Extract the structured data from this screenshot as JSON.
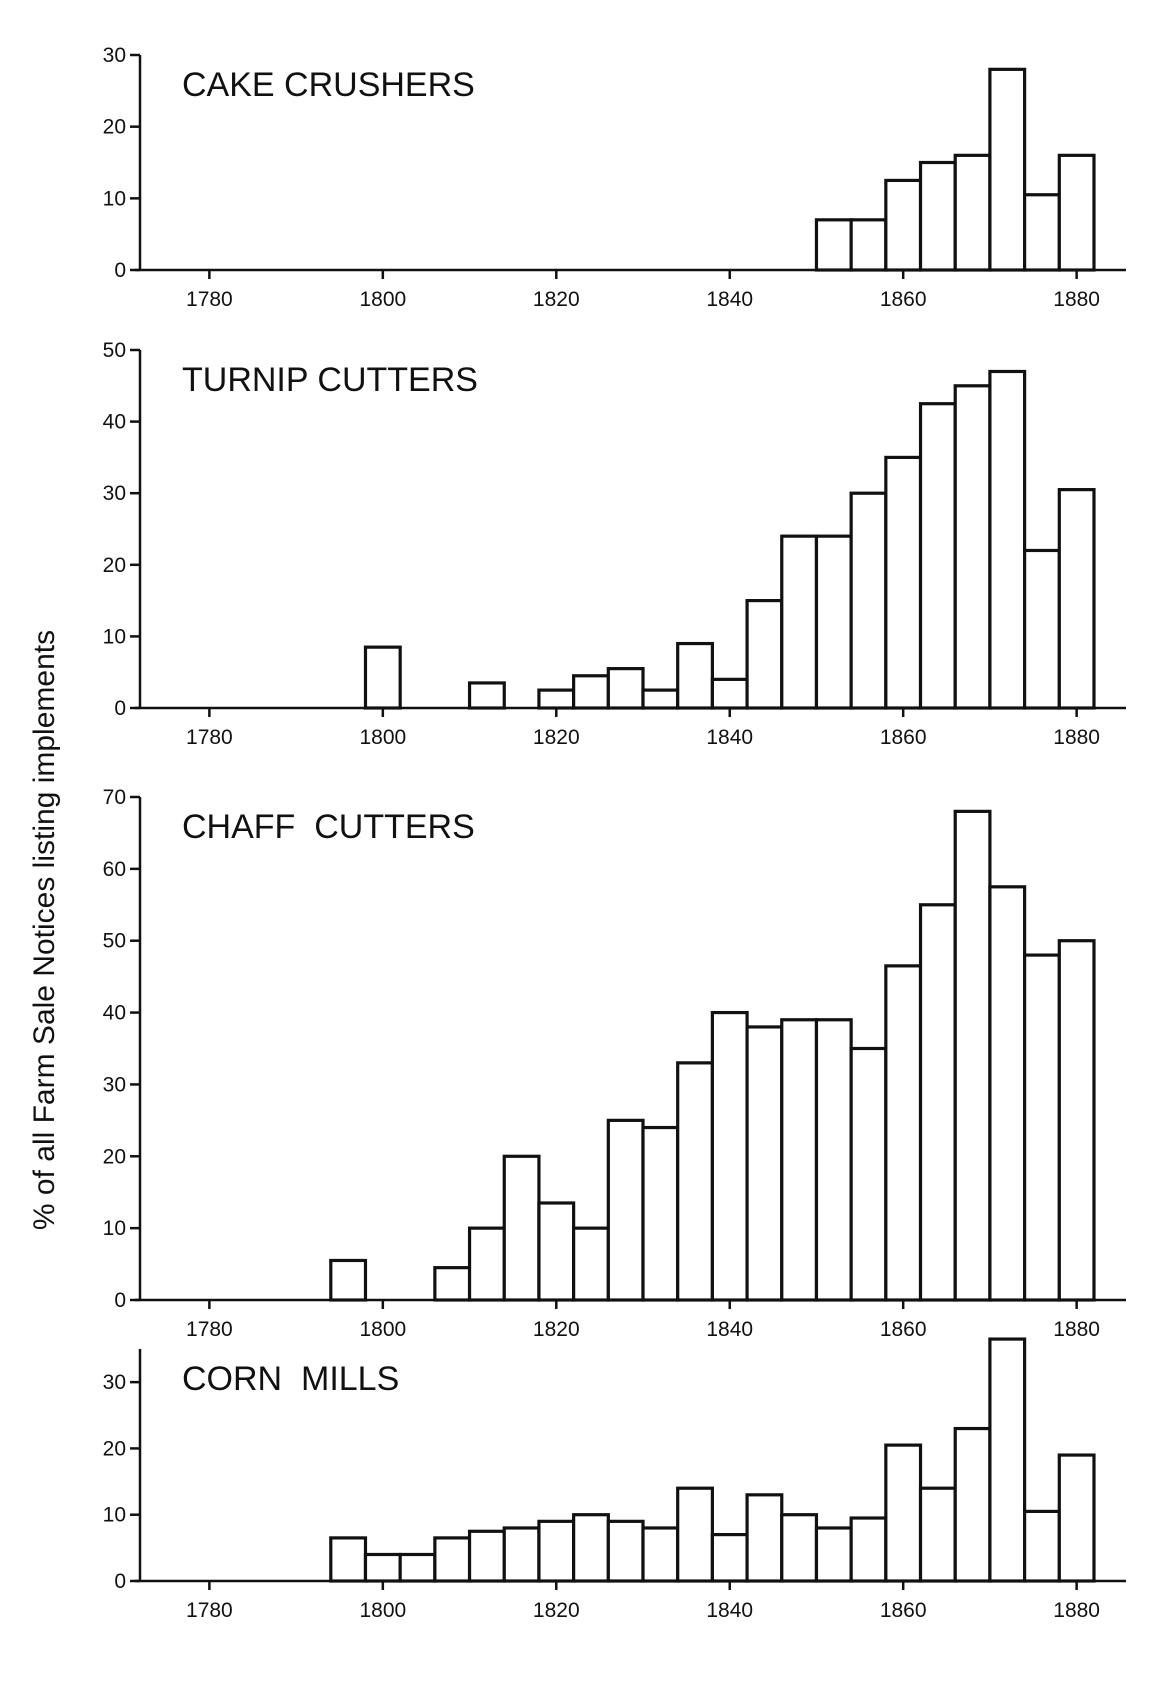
{
  "ylabel": "% of all Farm Sale Notices listing implements",
  "chart_data": [
    {
      "type": "bar",
      "title": "CAKE CRUSHERS",
      "xlim": [
        1772,
        1885
      ],
      "ylim": [
        0,
        30
      ],
      "yticks": [
        0,
        10,
        20,
        30
      ],
      "xticks": [
        1780,
        1800,
        1820,
        1840,
        1860,
        1880
      ],
      "bin_width": 4,
      "x": [
        1852,
        1856,
        1860,
        1864,
        1868,
        1872,
        1876,
        1880
      ],
      "values": [
        7,
        7,
        12.5,
        15,
        16,
        28,
        10.5,
        16
      ]
    },
    {
      "type": "bar",
      "title": "TURNIP CUTTERS",
      "xlim": [
        1772,
        1885
      ],
      "ylim": [
        0,
        50
      ],
      "yticks": [
        0,
        10,
        20,
        30,
        40,
        50
      ],
      "xticks": [
        1780,
        1800,
        1820,
        1840,
        1860,
        1880
      ],
      "bin_width": 4,
      "x": [
        1800,
        1812,
        1820,
        1824,
        1828,
        1832,
        1836,
        1840,
        1844,
        1848,
        1852,
        1856,
        1860,
        1864,
        1868,
        1872,
        1876,
        1880
      ],
      "values": [
        8.5,
        3.5,
        2.5,
        4.5,
        5.5,
        2.5,
        9,
        4,
        15,
        24,
        24,
        30,
        35,
        42.5,
        45,
        47,
        22,
        30.5
      ]
    },
    {
      "type": "bar",
      "title": "CHAFF  CUTTERS",
      "xlim": [
        1772,
        1885
      ],
      "ylim": [
        0,
        70
      ],
      "yticks": [
        0,
        10,
        20,
        30,
        40,
        50,
        60,
        70
      ],
      "xticks": [
        1780,
        1800,
        1820,
        1840,
        1860,
        1880
      ],
      "bin_width": 4,
      "x": [
        1796,
        1808,
        1812,
        1816,
        1820,
        1824,
        1828,
        1832,
        1836,
        1840,
        1844,
        1848,
        1852,
        1856,
        1860,
        1864,
        1868,
        1872,
        1876,
        1880
      ],
      "values": [
        5.5,
        4.5,
        10,
        20,
        13.5,
        10,
        25,
        24,
        33,
        40,
        38,
        39,
        39,
        35,
        46.5,
        55,
        68,
        57.5,
        48,
        50
      ]
    },
    {
      "type": "bar",
      "title": "CORN  MILLS",
      "xlim": [
        1772,
        1885
      ],
      "ylim": [
        0,
        35
      ],
      "yticks": [
        0,
        10,
        20,
        30
      ],
      "xticks": [
        1780,
        1800,
        1820,
        1840,
        1860,
        1880
      ],
      "bin_width": 4,
      "x": [
        1796,
        1800,
        1804,
        1808,
        1812,
        1816,
        1820,
        1824,
        1828,
        1832,
        1836,
        1840,
        1844,
        1848,
        1852,
        1856,
        1860,
        1864,
        1868,
        1872,
        1876,
        1880
      ],
      "values": [
        6.5,
        4,
        4,
        6.5,
        7.5,
        8,
        9,
        10,
        9,
        8,
        14,
        7,
        13,
        10,
        8,
        9.5,
        20.5,
        14,
        23,
        36.5,
        10.5,
        19
      ]
    }
  ]
}
